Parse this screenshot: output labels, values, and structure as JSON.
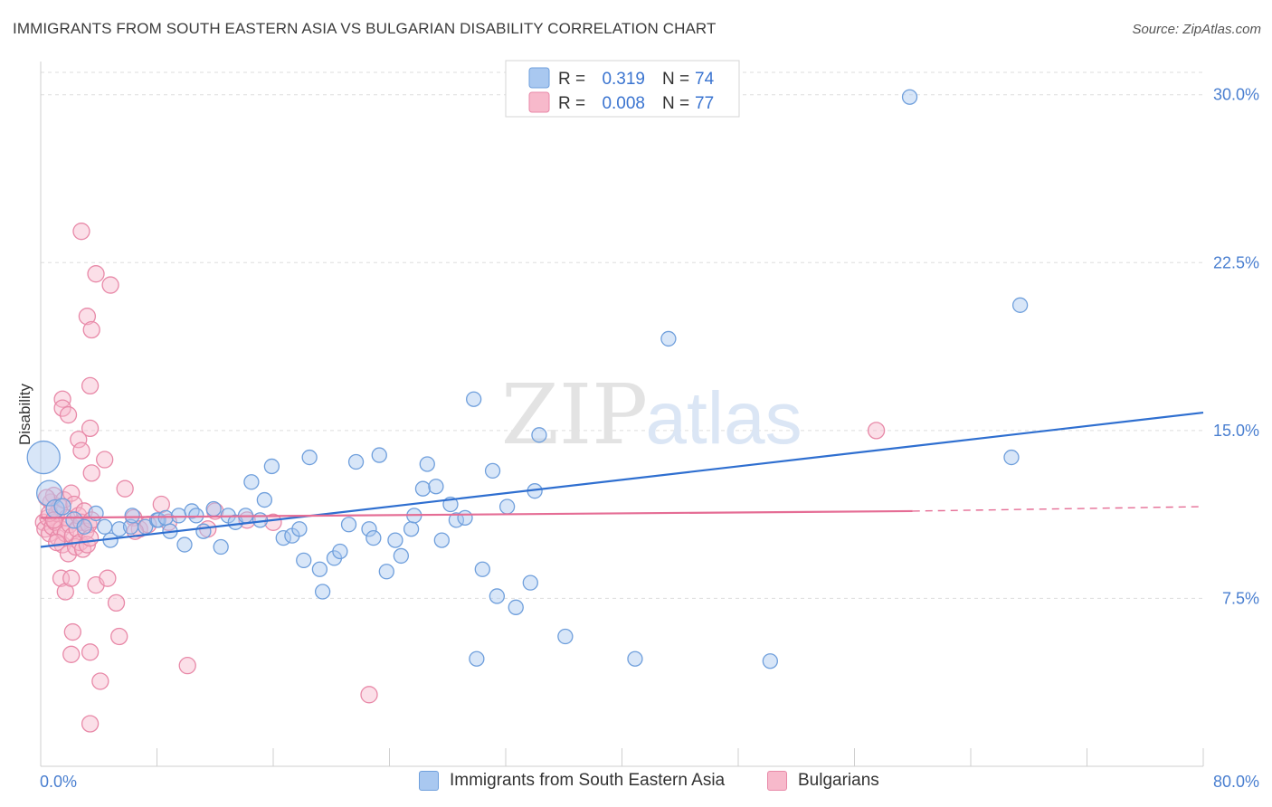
{
  "title": "IMMIGRANTS FROM SOUTH EASTERN ASIA VS BULGARIAN DISABILITY CORRELATION CHART",
  "source": "Source: ZipAtlas.com",
  "watermark": {
    "zip": "ZIP",
    "atlas": "atlas"
  },
  "legend": [
    {
      "r_label": "R =",
      "r_value": "0.319",
      "n_label": "N =",
      "n_value": "74"
    },
    {
      "r_label": "R =",
      "r_value": "0.008",
      "n_label": "N =",
      "n_value": "77"
    }
  ],
  "colors": {
    "blue_fill": "#a9c8f0",
    "blue_stroke": "#6f9fdc",
    "blue_line": "#2f6fd0",
    "pink_fill": "#f7b9cb",
    "pink_stroke": "#e889a8",
    "pink_line": "#e56d95",
    "tick_text": "#4a7fd0",
    "grid": "#dddddd"
  },
  "chart_data": {
    "type": "scatter",
    "title": "IMMIGRANTS FROM SOUTH EASTERN ASIA VS BULGARIAN DISABILITY CORRELATION CHART",
    "xlabel": "",
    "ylabel": "Disability",
    "xlim": [
      0,
      80
    ],
    "ylim": [
      0,
      31
    ],
    "x_tick_labels": [
      "0.0%",
      "80.0%"
    ],
    "y_ticks": [
      7.5,
      15.0,
      22.5,
      30.0
    ],
    "y_tick_labels": [
      "7.5%",
      "15.0%",
      "22.5%",
      "30.0%"
    ],
    "grid": "horizontal dashed",
    "legend_position": "top-center",
    "series": [
      {
        "name": "Immigrants from South Eastern Asia",
        "color": "#a9c8f0",
        "trend": {
          "x": [
            0,
            80
          ],
          "y": [
            9.8,
            15.8
          ]
        },
        "points": [
          [
            0.2,
            13.8,
            18
          ],
          [
            0.6,
            12.2,
            14
          ],
          [
            1.0,
            11.5,
            10
          ],
          [
            1.5,
            11.6,
            9
          ],
          [
            2.3,
            11.0,
            9
          ],
          [
            3.0,
            10.7,
            8
          ],
          [
            3.8,
            11.3,
            8
          ],
          [
            4.4,
            10.7,
            8
          ],
          [
            4.8,
            10.1,
            8
          ],
          [
            5.4,
            10.6,
            8
          ],
          [
            6.2,
            10.7,
            8
          ],
          [
            6.3,
            11.2,
            8
          ],
          [
            7.2,
            10.7,
            8
          ],
          [
            8.0,
            11.0,
            8
          ],
          [
            8.1,
            11.0,
            8
          ],
          [
            8.6,
            11.1,
            8
          ],
          [
            8.9,
            10.5,
            8
          ],
          [
            9.5,
            11.2,
            8
          ],
          [
            9.9,
            9.9,
            8
          ],
          [
            10.4,
            11.4,
            8
          ],
          [
            10.7,
            11.2,
            8
          ],
          [
            11.2,
            10.5,
            8
          ],
          [
            11.9,
            11.5,
            8
          ],
          [
            12.4,
            9.8,
            8
          ],
          [
            12.9,
            11.2,
            8
          ],
          [
            13.4,
            10.9,
            8
          ],
          [
            14.1,
            11.2,
            8
          ],
          [
            14.5,
            12.7,
            8
          ],
          [
            15.1,
            11.0,
            8
          ],
          [
            15.4,
            11.9,
            8
          ],
          [
            15.9,
            13.4,
            8
          ],
          [
            16.7,
            10.2,
            8
          ],
          [
            17.3,
            10.3,
            8
          ],
          [
            17.8,
            10.6,
            8
          ],
          [
            18.1,
            9.2,
            8
          ],
          [
            18.5,
            13.8,
            8
          ],
          [
            19.2,
            8.8,
            8
          ],
          [
            19.4,
            7.8,
            8
          ],
          [
            20.2,
            9.3,
            8
          ],
          [
            20.6,
            9.6,
            8
          ],
          [
            21.2,
            10.8,
            8
          ],
          [
            21.7,
            13.6,
            8
          ],
          [
            22.6,
            10.6,
            8
          ],
          [
            22.9,
            10.2,
            8
          ],
          [
            23.3,
            13.9,
            8
          ],
          [
            23.8,
            8.7,
            8
          ],
          [
            24.4,
            10.1,
            8
          ],
          [
            24.8,
            9.4,
            8
          ],
          [
            25.5,
            10.6,
            8
          ],
          [
            25.7,
            11.2,
            8
          ],
          [
            26.3,
            12.4,
            8
          ],
          [
            26.6,
            13.5,
            8
          ],
          [
            27.2,
            12.5,
            8
          ],
          [
            27.6,
            10.1,
            8
          ],
          [
            28.2,
            11.7,
            8
          ],
          [
            28.6,
            11.0,
            8
          ],
          [
            29.2,
            11.1,
            8
          ],
          [
            29.8,
            16.4,
            8
          ],
          [
            30.4,
            8.8,
            8
          ],
          [
            31.1,
            13.2,
            8
          ],
          [
            31.4,
            7.6,
            8
          ],
          [
            32.1,
            11.6,
            8
          ],
          [
            32.7,
            7.1,
            8
          ],
          [
            33.7,
            8.2,
            8
          ],
          [
            34.0,
            12.3,
            8
          ],
          [
            34.3,
            14.8,
            8
          ],
          [
            36.1,
            5.8,
            8
          ],
          [
            40.9,
            4.8,
            8
          ],
          [
            43.2,
            19.1,
            8
          ],
          [
            50.2,
            4.7,
            8
          ],
          [
            59.8,
            29.9,
            8
          ],
          [
            66.8,
            13.8,
            8
          ],
          [
            67.4,
            20.6,
            8
          ],
          [
            30.0,
            4.8,
            8
          ]
        ]
      },
      {
        "name": "Bulgarians",
        "color": "#f7b9cb",
        "trend": {
          "x": [
            0,
            60
          ],
          "y": [
            11.1,
            11.4
          ]
        },
        "trend_dashed": {
          "x": [
            60,
            80
          ],
          "y": [
            11.4,
            11.6
          ]
        },
        "points": [
          [
            0.2,
            10.9,
            9
          ],
          [
            0.3,
            10.6,
            9
          ],
          [
            0.5,
            11.1,
            9
          ],
          [
            0.6,
            10.4,
            9
          ],
          [
            0.7,
            11.8,
            9
          ],
          [
            0.8,
            10.7,
            9
          ],
          [
            0.9,
            12.1,
            9
          ],
          [
            1.0,
            10.9,
            9
          ],
          [
            1.1,
            11.3,
            9
          ],
          [
            1.2,
            10.2,
            9
          ],
          [
            1.3,
            11.6,
            9
          ],
          [
            1.4,
            10.6,
            9
          ],
          [
            1.5,
            9.9,
            9
          ],
          [
            1.6,
            11.9,
            9
          ],
          [
            1.7,
            10.4,
            9
          ],
          [
            1.8,
            11.1,
            9
          ],
          [
            1.9,
            9.5,
            9
          ],
          [
            2.0,
            10.8,
            9
          ],
          [
            2.1,
            12.2,
            9
          ],
          [
            2.2,
            10.3,
            9
          ],
          [
            2.3,
            11.7,
            9
          ],
          [
            2.4,
            9.8,
            9
          ],
          [
            2.5,
            10.6,
            9
          ],
          [
            2.6,
            11.2,
            9
          ],
          [
            2.7,
            10.0,
            9
          ],
          [
            2.8,
            10.9,
            9
          ],
          [
            2.9,
            9.7,
            9
          ],
          [
            3.0,
            11.4,
            9
          ],
          [
            3.1,
            10.5,
            9
          ],
          [
            3.2,
            9.9,
            9
          ],
          [
            3.3,
            10.8,
            9
          ],
          [
            3.4,
            10.2,
            9
          ],
          [
            3.5,
            11.0,
            9
          ],
          [
            1.4,
            8.4,
            9
          ],
          [
            1.7,
            7.8,
            9
          ],
          [
            2.1,
            8.4,
            9
          ],
          [
            2.2,
            6.0,
            9
          ],
          [
            2.1,
            5.0,
            9
          ],
          [
            2.6,
            14.6,
            9
          ],
          [
            2.8,
            14.1,
            9
          ],
          [
            2.8,
            23.9,
            9
          ],
          [
            3.2,
            20.1,
            9
          ],
          [
            3.4,
            17.0,
            9
          ],
          [
            3.4,
            15.1,
            9
          ],
          [
            3.5,
            13.1,
            9
          ],
          [
            3.5,
            19.5,
            9
          ],
          [
            3.4,
            5.1,
            9
          ],
          [
            1.5,
            16.4,
            9
          ],
          [
            1.5,
            16.0,
            9
          ],
          [
            1.9,
            15.7,
            9
          ],
          [
            3.8,
            8.1,
            9
          ],
          [
            4.1,
            3.8,
            9
          ],
          [
            4.6,
            8.4,
            9
          ],
          [
            4.4,
            13.7,
            9
          ],
          [
            3.4,
            1.9,
            9
          ],
          [
            3.8,
            22.0,
            9
          ],
          [
            4.8,
            21.5,
            9
          ],
          [
            5.2,
            7.3,
            9
          ],
          [
            5.4,
            5.8,
            9
          ],
          [
            5.8,
            12.4,
            9
          ],
          [
            6.4,
            11.1,
            9
          ],
          [
            6.8,
            10.6,
            9
          ],
          [
            7.4,
            10.8,
            9
          ],
          [
            8.3,
            11.7,
            9
          ],
          [
            8.8,
            10.9,
            9
          ],
          [
            10.1,
            4.5,
            9
          ],
          [
            11.5,
            10.6,
            9
          ],
          [
            12.0,
            11.4,
            9
          ],
          [
            14.2,
            11.0,
            9
          ],
          [
            16.0,
            10.9,
            9
          ],
          [
            22.6,
            3.2,
            9
          ],
          [
            57.5,
            15.0,
            9
          ],
          [
            6.5,
            10.5,
            9
          ],
          [
            0.6,
            11.3,
            9
          ],
          [
            1.1,
            10.0,
            9
          ],
          [
            0.9,
            11.0,
            9
          ],
          [
            0.4,
            12.0,
            9
          ]
        ]
      }
    ]
  }
}
